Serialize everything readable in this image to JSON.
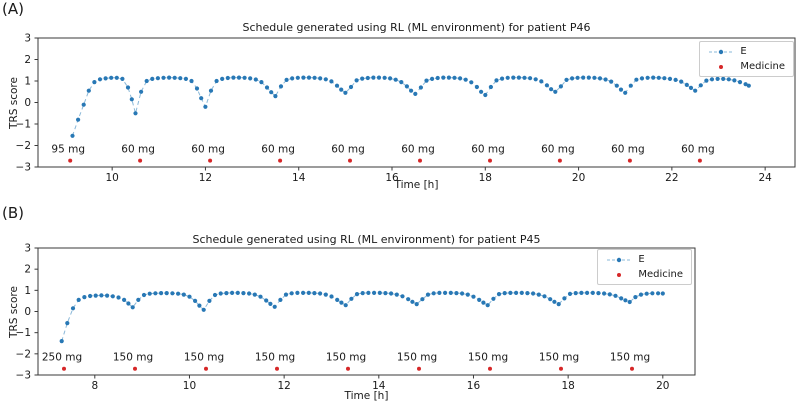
{
  "colors": {
    "e_line": "#8ab8d8",
    "e_marker": "#2878b5",
    "medicine": "#d62728",
    "text": "#1a1a1a",
    "spine": "#3a3a3a",
    "legend_border": "#cccccc"
  },
  "chart_data": [
    {
      "type": "line",
      "panel_label": "(A)",
      "title": "Schedule generated using RL (ML environment) for patient P46",
      "xlabel": "Time [h]",
      "ylabel": "TRS score",
      "legend_entries": [
        "E",
        "Medicine"
      ],
      "legend_position": "upper right",
      "grid": false,
      "xlim": [
        8.41,
        24.64
      ],
      "ylim": [
        -3,
        3
      ],
      "xticks": [
        10,
        12,
        14,
        16,
        18,
        20,
        22,
        24
      ],
      "yticks": [
        3,
        2,
        1,
        0,
        -1,
        -2,
        -3
      ],
      "series_e": {
        "name": "E",
        "x": [
          9.15,
          9.27,
          9.39,
          9.5,
          9.62,
          9.74,
          9.86,
          9.98,
          10.1,
          10.22,
          10.34,
          10.42,
          10.5,
          10.62,
          10.74,
          10.86,
          10.98,
          11.1,
          11.22,
          11.34,
          11.46,
          11.58,
          11.7,
          11.82,
          11.91,
          12.0,
          12.12,
          12.24,
          12.36,
          12.48,
          12.6,
          12.72,
          12.84,
          12.96,
          13.08,
          13.2,
          13.32,
          13.41,
          13.5,
          13.62,
          13.74,
          13.86,
          13.98,
          14.1,
          14.22,
          14.34,
          14.46,
          14.58,
          14.7,
          14.82,
          14.91,
          15.0,
          15.12,
          15.24,
          15.36,
          15.48,
          15.6,
          15.72,
          15.84,
          15.96,
          16.08,
          16.2,
          16.32,
          16.41,
          16.5,
          16.62,
          16.74,
          16.86,
          16.98,
          17.1,
          17.22,
          17.34,
          17.46,
          17.58,
          17.7,
          17.82,
          17.91,
          18.0,
          18.12,
          18.24,
          18.36,
          18.48,
          18.6,
          18.72,
          18.84,
          18.96,
          19.08,
          19.2,
          19.32,
          19.41,
          19.5,
          19.62,
          19.74,
          19.86,
          19.98,
          20.1,
          20.22,
          20.34,
          20.46,
          20.58,
          20.7,
          20.82,
          20.91,
          21.0,
          21.12,
          21.24,
          21.36,
          21.48,
          21.6,
          21.72,
          21.84,
          21.96,
          22.08,
          22.2,
          22.32,
          22.41,
          22.5,
          22.62,
          22.74,
          22.86,
          22.98,
          23.1,
          23.22,
          23.34,
          23.46,
          23.58,
          23.65
        ],
        "y": [
          -1.55,
          -0.8,
          -0.1,
          0.55,
          0.95,
          1.08,
          1.12,
          1.15,
          1.15,
          1.1,
          0.7,
          0.15,
          -0.5,
          0.5,
          1.0,
          1.1,
          1.13,
          1.15,
          1.16,
          1.15,
          1.13,
          1.1,
          1.0,
          0.65,
          0.2,
          -0.2,
          0.55,
          1.0,
          1.1,
          1.14,
          1.16,
          1.16,
          1.15,
          1.12,
          1.07,
          0.95,
          0.7,
          0.48,
          0.3,
          0.75,
          1.05,
          1.12,
          1.15,
          1.16,
          1.16,
          1.15,
          1.12,
          1.08,
          0.98,
          0.78,
          0.6,
          0.45,
          0.72,
          1.03,
          1.11,
          1.14,
          1.16,
          1.16,
          1.15,
          1.12,
          1.06,
          0.95,
          0.75,
          0.55,
          0.4,
          0.7,
          1.02,
          1.1,
          1.14,
          1.16,
          1.16,
          1.15,
          1.12,
          1.06,
          0.94,
          0.72,
          0.5,
          0.35,
          0.72,
          1.03,
          1.11,
          1.15,
          1.16,
          1.16,
          1.15,
          1.13,
          1.08,
          0.98,
          0.8,
          0.62,
          0.5,
          0.75,
          1.05,
          1.12,
          1.15,
          1.16,
          1.16,
          1.15,
          1.12,
          1.07,
          0.97,
          0.78,
          0.6,
          0.45,
          0.78,
          1.06,
          1.12,
          1.15,
          1.16,
          1.15,
          1.13,
          1.1,
          1.05,
          0.97,
          0.82,
          0.68,
          0.55,
          0.8,
          1.02,
          1.08,
          1.1,
          1.1,
          1.08,
          1.03,
          0.95,
          0.85,
          0.78
        ]
      },
      "medicine": {
        "name": "Medicine",
        "x": [
          9.1,
          10.6,
          12.1,
          13.6,
          15.1,
          16.6,
          18.1,
          19.6,
          21.1,
          22.6
        ],
        "labels": [
          "95 mg",
          "60 mg",
          "60 mg",
          "60 mg",
          "60 mg",
          "60 mg",
          "60 mg",
          "60 mg",
          "60 mg",
          "60 mg"
        ],
        "marker_y": -2.7,
        "label_y": -2.32
      }
    },
    {
      "type": "line",
      "panel_label": "(B)",
      "title": "Schedule generated using RL (ML environment) for patient P45",
      "xlabel": "Time [h]",
      "ylabel": "TRS score",
      "legend_entries": [
        "E",
        "Medicine"
      ],
      "legend_position": "upper right",
      "grid": false,
      "xlim": [
        6.8,
        20.68
      ],
      "ylim": [
        -3,
        3
      ],
      "xticks": [
        8,
        10,
        12,
        14,
        16,
        18,
        20
      ],
      "yticks": [
        3,
        2,
        1,
        0,
        -1,
        -2,
        -3
      ],
      "series_e": {
        "name": "E",
        "x": [
          7.3,
          7.42,
          7.54,
          7.66,
          7.78,
          7.9,
          8.02,
          8.14,
          8.26,
          8.38,
          8.5,
          8.62,
          8.71,
          8.8,
          8.92,
          9.04,
          9.16,
          9.28,
          9.4,
          9.52,
          9.64,
          9.76,
          9.88,
          10.0,
          10.12,
          10.21,
          10.3,
          10.42,
          10.54,
          10.66,
          10.78,
          10.9,
          11.02,
          11.14,
          11.26,
          11.38,
          11.5,
          11.62,
          11.71,
          11.8,
          11.92,
          12.04,
          12.16,
          12.28,
          12.4,
          12.52,
          12.64,
          12.76,
          12.88,
          13.0,
          13.12,
          13.21,
          13.3,
          13.42,
          13.54,
          13.66,
          13.78,
          13.9,
          14.02,
          14.14,
          14.26,
          14.38,
          14.5,
          14.62,
          14.71,
          14.8,
          14.92,
          15.04,
          15.16,
          15.28,
          15.4,
          15.52,
          15.64,
          15.76,
          15.88,
          16.0,
          16.12,
          16.21,
          16.3,
          16.42,
          16.54,
          16.66,
          16.78,
          16.9,
          17.02,
          17.14,
          17.26,
          17.38,
          17.5,
          17.62,
          17.71,
          17.8,
          17.92,
          18.04,
          18.16,
          18.28,
          18.4,
          18.52,
          18.64,
          18.76,
          18.88,
          19.0,
          19.12,
          19.21,
          19.3,
          19.42,
          19.54,
          19.66,
          19.78,
          19.9,
          20.0
        ],
        "y": [
          -1.4,
          -0.55,
          0.15,
          0.55,
          0.68,
          0.73,
          0.75,
          0.76,
          0.75,
          0.72,
          0.66,
          0.55,
          0.38,
          0.2,
          0.55,
          0.78,
          0.84,
          0.86,
          0.87,
          0.87,
          0.86,
          0.84,
          0.8,
          0.7,
          0.5,
          0.28,
          0.08,
          0.5,
          0.78,
          0.85,
          0.87,
          0.88,
          0.88,
          0.87,
          0.85,
          0.8,
          0.7,
          0.52,
          0.36,
          0.22,
          0.55,
          0.8,
          0.86,
          0.88,
          0.88,
          0.88,
          0.87,
          0.85,
          0.8,
          0.71,
          0.55,
          0.42,
          0.3,
          0.6,
          0.82,
          0.87,
          0.88,
          0.88,
          0.88,
          0.87,
          0.85,
          0.8,
          0.72,
          0.58,
          0.46,
          0.35,
          0.58,
          0.8,
          0.86,
          0.88,
          0.88,
          0.88,
          0.87,
          0.85,
          0.8,
          0.7,
          0.55,
          0.42,
          0.3,
          0.6,
          0.82,
          0.87,
          0.88,
          0.88,
          0.88,
          0.87,
          0.85,
          0.8,
          0.72,
          0.58,
          0.46,
          0.35,
          0.62,
          0.83,
          0.87,
          0.88,
          0.88,
          0.88,
          0.87,
          0.85,
          0.81,
          0.74,
          0.62,
          0.53,
          0.45,
          0.68,
          0.8,
          0.84,
          0.86,
          0.86,
          0.85
        ]
      },
      "medicine": {
        "name": "Medicine",
        "x": [
          7.35,
          8.85,
          10.35,
          11.85,
          13.35,
          14.85,
          16.35,
          17.85,
          19.35
        ],
        "labels": [
          "250 mg",
          "150 mg",
          "150 mg",
          "150 mg",
          "150 mg",
          "150 mg",
          "150 mg",
          "150 mg",
          "150 mg"
        ],
        "marker_y": -2.7,
        "label_y": -2.32
      }
    }
  ]
}
